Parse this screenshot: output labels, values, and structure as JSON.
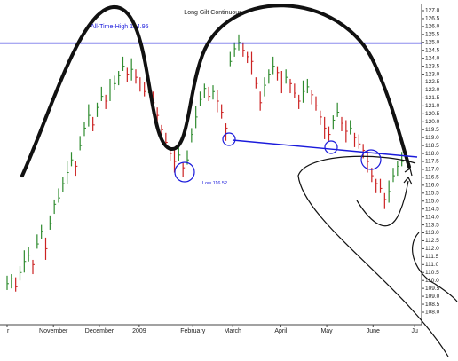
{
  "chart_data": {
    "type": "ohlc",
    "title": "Long Gilt Continuous",
    "xticks": [
      {
        "value": 0,
        "label": "r"
      },
      {
        "value": 10.8,
        "label": "November"
      },
      {
        "value": 21.5,
        "label": "December"
      },
      {
        "value": 30.8,
        "label": "2009"
      },
      {
        "value": 43.3,
        "label": "February"
      },
      {
        "value": 52.6,
        "label": "March"
      },
      {
        "value": 63.8,
        "label": "April"
      },
      {
        "value": 74.5,
        "label": "May"
      },
      {
        "value": 85.3,
        "label": "June"
      },
      {
        "value": 95,
        "label": "Ju"
      }
    ],
    "xlim": [
      0,
      96
    ],
    "ylim": [
      108.0,
      127.0
    ],
    "yticks": [
      {
        "value": 108.0,
        "label": "108.0"
      },
      {
        "value": 108.5,
        "label": "108.5"
      },
      {
        "value": 109.0,
        "label": "109.0"
      },
      {
        "value": 109.5,
        "label": "109.5"
      },
      {
        "value": 110.0,
        "label": "110.0"
      },
      {
        "value": 110.5,
        "label": "110.5"
      },
      {
        "value": 111.0,
        "label": "111.0"
      },
      {
        "value": 111.5,
        "label": "111.5"
      },
      {
        "value": 112.0,
        "label": "112.0"
      },
      {
        "value": 112.5,
        "label": "112.5"
      },
      {
        "value": 113.0,
        "label": "113.0"
      },
      {
        "value": 113.5,
        "label": "113.5"
      },
      {
        "value": 114.0,
        "label": "114.0"
      },
      {
        "value": 114.5,
        "label": "114.5"
      },
      {
        "value": 115.0,
        "label": "115.0"
      },
      {
        "value": 115.5,
        "label": "115.5"
      },
      {
        "value": 116.0,
        "label": "116.0"
      },
      {
        "value": 116.5,
        "label": "116.5"
      },
      {
        "value": 117.0,
        "label": "117.0"
      },
      {
        "value": 117.5,
        "label": "117.5"
      },
      {
        "value": 118.0,
        "label": "118.0"
      },
      {
        "value": 118.5,
        "label": "118.5"
      },
      {
        "value": 119.0,
        "label": "119.0"
      },
      {
        "value": 119.5,
        "label": "119.5"
      },
      {
        "value": 120.0,
        "label": "120.0"
      },
      {
        "value": 120.5,
        "label": "120.5"
      },
      {
        "value": 121.0,
        "label": "121.0"
      },
      {
        "value": 121.5,
        "label": "121.5"
      },
      {
        "value": 122.0,
        "label": "122.0"
      },
      {
        "value": 122.5,
        "label": "122.5"
      },
      {
        "value": 123.0,
        "label": "123.0"
      },
      {
        "value": 123.5,
        "label": "123.5"
      },
      {
        "value": 124.0,
        "label": "124.0"
      },
      {
        "value": 124.5,
        "label": "124.5"
      },
      {
        "value": 125.0,
        "label": "125.0"
      },
      {
        "value": 125.5,
        "label": "125.5"
      },
      {
        "value": 126.0,
        "label": "126.0"
      },
      {
        "value": 126.5,
        "label": "126.5"
      },
      {
        "value": 127.0,
        "label": "127.0"
      }
    ],
    "up_color": "#2e8b2e",
    "down_color": "#cc2222",
    "grid": false,
    "high": [
      110.3,
      110.4,
      110.2,
      110.9,
      111.9,
      112.1,
      111.3,
      112.9,
      113.5,
      112.7,
      114.1,
      115.1,
      115.8,
      116.5,
      117.5,
      118.1,
      117.5,
      119.1,
      120.0,
      121.1,
      120.3,
      121.2,
      122.2,
      121.7,
      122.7,
      122.9,
      123.2,
      124.1,
      123.4,
      124.0,
      123.3,
      122.8,
      122.5,
      122.7,
      121.9,
      120.9,
      119.8,
      119.3,
      118.4,
      118.2,
      118.4,
      117.4,
      118.2,
      119.6,
      121.0,
      121.9,
      122.4,
      122.2,
      122.3,
      122.0,
      121.1,
      119.9,
      124.4,
      125.0,
      125.5,
      125.0,
      124.4,
      124.4,
      122.8,
      121.9,
      122.8,
      123.3,
      124.1,
      123.5,
      123.2,
      123.3,
      122.7,
      122.4,
      121.7,
      122.6,
      122.7,
      122.0,
      121.6,
      120.7,
      120.3,
      119.7,
      120.4,
      121.2,
      120.3,
      120.1,
      120.1,
      119.3,
      119.2,
      118.6,
      118.2,
      117.1,
      116.4,
      116.4,
      115.5,
      116.3,
      117.1,
      117.5,
      118.1
    ],
    "low": [
      109.4,
      109.5,
      109.3,
      110.0,
      110.5,
      111.2,
      110.4,
      112.0,
      112.6,
      111.3,
      113.2,
      114.2,
      114.9,
      115.6,
      116.1,
      117.2,
      116.6,
      118.2,
      119.1,
      119.7,
      119.4,
      120.3,
      121.3,
      120.8,
      121.3,
      122.0,
      122.3,
      123.2,
      122.5,
      122.6,
      122.4,
      121.9,
      121.6,
      121.8,
      120.5,
      120.0,
      118.9,
      118.4,
      117.5,
      116.8,
      117.5,
      116.5,
      117.3,
      118.7,
      119.6,
      121.0,
      121.5,
      121.3,
      121.4,
      120.6,
      120.2,
      118.8,
      123.5,
      124.1,
      124.5,
      124.1,
      123.7,
      123.0,
      122.1,
      120.7,
      121.6,
      122.4,
      123.0,
      122.6,
      121.8,
      122.4,
      121.8,
      121.5,
      120.8,
      121.2,
      121.8,
      121.1,
      120.7,
      119.8,
      118.9,
      118.8,
      119.5,
      120.3,
      119.4,
      118.7,
      119.2,
      118.4,
      118.3,
      117.7,
      116.8,
      116.2,
      115.5,
      115.5,
      114.5,
      114.9,
      116.2,
      116.6,
      117.2
    ],
    "close": [
      109.8,
      110.1,
      109.6,
      110.5,
      111.2,
      111.6,
      111.0,
      112.3,
      113.1,
      112.0,
      113.6,
      114.8,
      115.2,
      116.1,
      116.8,
      117.6,
      117.2,
      118.5,
      119.6,
      120.4,
      119.8,
      120.9,
      121.6,
      121.3,
      122.0,
      122.4,
      122.9,
      123.5,
      123.0,
      123.3,
      122.8,
      122.5,
      121.9,
      122.3,
      121.2,
      120.4,
      119.5,
      118.7,
      118.0,
      117.5,
      117.9,
      117.1,
      117.6,
      119.2,
      120.3,
      121.4,
      122.1,
      121.6,
      121.9,
      121.3,
      120.6,
      119.6,
      123.8,
      124.6,
      125.0,
      124.5,
      124.1,
      123.8,
      122.4,
      121.2,
      122.3,
      123.0,
      123.5,
      123.1,
      122.5,
      122.8,
      122.4,
      121.8,
      121.3,
      121.9,
      122.2,
      121.7,
      121.0,
      120.3,
      119.6,
      119.2,
      120.1,
      120.6,
      119.9,
      119.4,
      119.6,
      119.0,
      118.6,
      118.2,
      117.5,
      116.6,
      116.1,
      115.8,
      115.1,
      115.6,
      116.6,
      117.2,
      117.5
    ],
    "annotations": [
      {
        "label": "All-Time-High 124.95",
        "value": 124.95
      },
      {
        "label": "Low 116.52",
        "value": 116.52
      }
    ]
  }
}
